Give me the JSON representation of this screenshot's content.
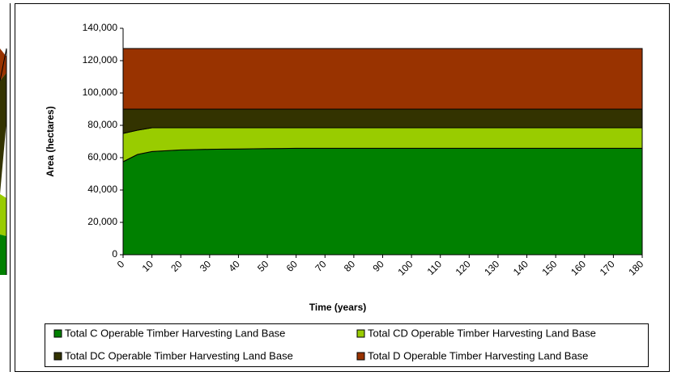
{
  "chart_data": {
    "type": "area",
    "x": [
      0,
      5,
      10,
      15,
      20,
      25,
      30,
      35,
      40,
      45,
      50,
      55,
      60,
      65,
      70,
      75,
      80,
      85,
      90,
      95,
      100,
      105,
      110,
      115,
      120,
      125,
      130,
      135,
      140,
      145,
      150,
      155,
      160,
      165,
      170,
      175,
      180
    ],
    "series": [
      {
        "name": "Total C Operable Timber Harvesting Land Base",
        "color": "#008000",
        "values": [
          57500,
          62000,
          63800,
          64300,
          64800,
          65000,
          65200,
          65300,
          65400,
          65500,
          65600,
          65700,
          65800,
          65800,
          65800,
          65800,
          65800,
          65800,
          65800,
          65800,
          65800,
          65800,
          65800,
          65800,
          65800,
          65800,
          65800,
          65800,
          65800,
          65800,
          65800,
          65800,
          65800,
          65800,
          65800,
          65800,
          65800
        ]
      },
      {
        "name": "Total CD Operable Timber Harvesting Land Base",
        "color": "#99cc00",
        "values": [
          17500,
          15000,
          14700,
          14200,
          13700,
          13500,
          13300,
          13200,
          13100,
          13000,
          12900,
          12800,
          12700,
          12700,
          12700,
          12700,
          12700,
          12700,
          12700,
          12700,
          12700,
          12700,
          12700,
          12700,
          12700,
          12700,
          12700,
          12700,
          12700,
          12700,
          12700,
          12700,
          12700,
          12700,
          12700,
          12700,
          12700
        ]
      },
      {
        "name": "Total DC Operable Timber Harvesting Land Base",
        "color": "#333300",
        "values": [
          15000,
          13000,
          11500,
          11500,
          11500,
          11500,
          11500,
          11500,
          11500,
          11500,
          11500,
          11500,
          11500,
          11500,
          11500,
          11500,
          11500,
          11500,
          11500,
          11500,
          11500,
          11500,
          11500,
          11500,
          11500,
          11500,
          11500,
          11500,
          11500,
          11500,
          11500,
          11500,
          11500,
          11500,
          11500,
          11500,
          11500
        ]
      },
      {
        "name": "Total D Operable Timber Harvesting Land Base",
        "color": "#993300",
        "values": [
          37500,
          37500,
          37500,
          37500,
          37500,
          37500,
          37500,
          37500,
          37500,
          37500,
          37500,
          37500,
          37500,
          37500,
          37500,
          37500,
          37500,
          37500,
          37500,
          37500,
          37500,
          37500,
          37500,
          37500,
          37500,
          37500,
          37500,
          37500,
          37500,
          37500,
          37500,
          37500,
          37500,
          37500,
          37500,
          37500,
          37500
        ]
      }
    ],
    "xlabel": "Time (years)",
    "ylabel": "Area (hectares)",
    "xlim": [
      0,
      180
    ],
    "xticks": [
      0,
      10,
      20,
      30,
      40,
      50,
      60,
      70,
      80,
      90,
      100,
      110,
      120,
      130,
      140,
      150,
      160,
      170,
      180
    ],
    "ylim": [
      0,
      140000
    ],
    "yticks": [
      0,
      {
        "value": 20000,
        "label": "20,000"
      },
      {
        "value": 40000,
        "label": "40,000"
      },
      {
        "value": 60000,
        "label": "60,000"
      },
      {
        "value": 80000,
        "label": "80,000"
      },
      {
        "value": 100000,
        "label": "100,000"
      },
      {
        "value": 120000,
        "label": "120,000"
      },
      {
        "value": 140000,
        "label": "140,000"
      }
    ],
    "legend": "bottom",
    "stacked": true
  }
}
